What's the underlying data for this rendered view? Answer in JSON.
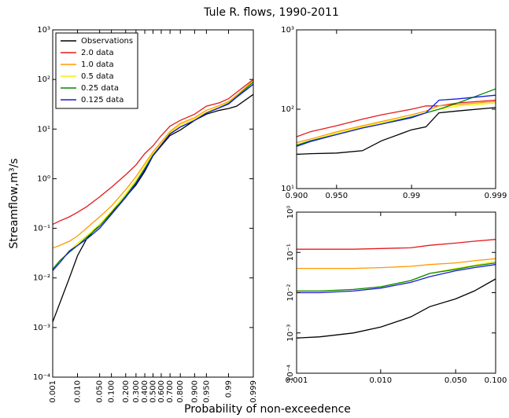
{
  "title": "Tule R. flows, 1990-2011",
  "xlabel": "Probability of non-exceedence",
  "ylabel": "Streamflow,m³/s",
  "chart_data": [
    {
      "type": "line",
      "xscale": "probability",
      "yscale": "log",
      "legend": "upper left",
      "xlim": [
        0.001,
        0.999
      ],
      "ylim": [
        0.0001,
        1000
      ],
      "xticks": [
        0.001,
        {
          "value": 0.01,
          "label": "0.010"
        },
        {
          "value": 0.05,
          "label": "0.050"
        },
        {
          "value": 0.1,
          "label": "0.100"
        },
        {
          "value": 0.2,
          "label": "0.200"
        },
        {
          "value": 0.3,
          "label": "0.300"
        },
        {
          "value": 0.4,
          "label": "0.400"
        },
        {
          "value": 0.5,
          "label": "0.500"
        },
        {
          "value": 0.6,
          "label": "0.600"
        },
        {
          "value": 0.7,
          "label": "0.700"
        },
        {
          "value": 0.8,
          "label": "0.800"
        },
        {
          "value": 0.9,
          "label": "0.900"
        },
        {
          "value": 0.95,
          "label": "0.950"
        },
        0.99,
        0.999
      ],
      "yticks": [
        {
          "value": 0.0001,
          "label": "10⁻⁴"
        },
        {
          "value": 0.001,
          "label": "10⁻³"
        },
        {
          "value": 0.01,
          "label": "10⁻²"
        },
        {
          "value": 0.1,
          "label": "10⁻¹"
        },
        {
          "value": 1,
          "label": "10⁰"
        },
        {
          "value": 10,
          "label": "10¹"
        },
        {
          "value": 100,
          "label": "10²"
        },
        {
          "value": 1000,
          "label": "10³"
        }
      ],
      "x": [
        0.001,
        0.002,
        0.005,
        0.01,
        0.02,
        0.05,
        0.1,
        0.2,
        0.3,
        0.4,
        0.5,
        0.6,
        0.7,
        0.8,
        0.9,
        0.95,
        0.98,
        0.99,
        0.995,
        0.999
      ],
      "series": [
        {
          "name": "Observations",
          "color": "#000000",
          "values": [
            0.0013,
            0.003,
            0.01,
            0.028,
            0.06,
            0.12,
            0.21,
            0.43,
            0.75,
            1.4,
            2.9,
            4.6,
            7.4,
            9.6,
            15,
            20,
            24,
            26,
            29,
            50
          ]
        },
        {
          "name": "2.0 data",
          "color": "#e41a1c",
          "values": [
            0.12,
            0.14,
            0.17,
            0.21,
            0.27,
            0.43,
            0.67,
            1.2,
            1.9,
            3.2,
            4.6,
            7.4,
            11.5,
            15,
            20,
            29,
            34,
            41,
            55,
            100
          ]
        },
        {
          "name": "1.0 data",
          "color": "#ff9900",
          "values": [
            0.04,
            0.045,
            0.055,
            0.07,
            0.1,
            0.17,
            0.28,
            0.6,
            1.1,
            2,
            3.5,
            5.5,
            9,
            13,
            17,
            24,
            30,
            36,
            48,
            95
          ]
        },
        {
          "name": "0.5 data",
          "color": "#f2f200",
          "values": [
            0.014,
            0.022,
            0.035,
            0.05,
            0.07,
            0.12,
            0.22,
            0.5,
            0.95,
            1.8,
            3.2,
            5,
            8.5,
            12,
            16,
            22,
            28,
            34,
            45,
            90
          ]
        },
        {
          "name": "0.25 data",
          "color": "#008800",
          "values": [
            0.015,
            0.022,
            0.033,
            0.045,
            0.065,
            0.11,
            0.2,
            0.45,
            0.85,
            1.6,
            3,
            4.8,
            8,
            11,
            15,
            21,
            27,
            33,
            45,
            88
          ]
        },
        {
          "name": "0.125 data",
          "color": "#1a1adb",
          "values": [
            0.014,
            0.02,
            0.035,
            0.045,
            0.06,
            0.1,
            0.19,
            0.42,
            0.8,
            1.5,
            2.9,
            4.8,
            8,
            11,
            15,
            21,
            27,
            32,
            44,
            80
          ]
        }
      ]
    },
    {
      "type": "line",
      "xscale": "probability",
      "yscale": "log",
      "xlim": [
        0.9,
        0.999
      ],
      "ylim": [
        10,
        1000
      ],
      "xticks": [
        {
          "value": 0.9,
          "label": "0.900"
        },
        {
          "value": 0.95,
          "label": "0.950"
        },
        0.99,
        0.999
      ],
      "yticks": [
        {
          "value": 10,
          "label": "10¹"
        },
        {
          "value": 100,
          "label": "10²"
        },
        {
          "value": 1000,
          "label": "10³"
        }
      ],
      "x": [
        0.9,
        0.92,
        0.95,
        0.97,
        0.98,
        0.99,
        0.993,
        0.995,
        0.997,
        0.999
      ],
      "series": [
        {
          "color": "#000000",
          "values": [
            27,
            27.5,
            28,
            30,
            40,
            55,
            60,
            90,
            95,
            105
          ]
        },
        {
          "color": "#e41a1c",
          "values": [
            45,
            52,
            62,
            75,
            85,
            100,
            110,
            110,
            120,
            130
          ]
        },
        {
          "color": "#ff9900",
          "values": [
            38,
            42,
            52,
            62,
            70,
            85,
            95,
            110,
            115,
            125
          ]
        },
        {
          "color": "#f2f200",
          "values": [
            36,
            40,
            50,
            60,
            68,
            80,
            90,
            100,
            110,
            120
          ]
        },
        {
          "color": "#008800",
          "values": [
            35,
            40,
            48,
            58,
            65,
            80,
            90,
            100,
            120,
            180
          ]
        },
        {
          "color": "#1a1adb",
          "values": [
            34,
            39,
            48,
            58,
            65,
            78,
            90,
            130,
            135,
            150
          ]
        }
      ]
    },
    {
      "type": "line",
      "xscale": "probability",
      "yscale": "log",
      "xlim": [
        0.001,
        0.1
      ],
      "ylim": [
        0.0001,
        1
      ],
      "xticks": [
        0.001,
        {
          "value": 0.01,
          "label": "0.010"
        },
        {
          "value": 0.05,
          "label": "0.050"
        },
        {
          "value": 0.1,
          "label": "0.100"
        }
      ],
      "yticks": [
        {
          "value": 0.0001,
          "label": "10⁻⁴"
        },
        {
          "value": 0.001,
          "label": "10⁻³"
        },
        {
          "value": 0.01,
          "label": "10⁻²"
        },
        {
          "value": 0.1,
          "label": "10⁻¹"
        },
        {
          "value": 1,
          "label": "10⁰"
        }
      ],
      "x": [
        0.001,
        0.002,
        0.005,
        0.01,
        0.02,
        0.03,
        0.05,
        0.07,
        0.1
      ],
      "series": [
        {
          "color": "#000000",
          "values": [
            0.00075,
            0.0008,
            0.001,
            0.0014,
            0.0025,
            0.0045,
            0.007,
            0.011,
            0.022
          ]
        },
        {
          "color": "#e41a1c",
          "values": [
            0.12,
            0.12,
            0.12,
            0.125,
            0.13,
            0.15,
            0.17,
            0.19,
            0.21
          ]
        },
        {
          "color": "#ff9900",
          "values": [
            0.04,
            0.04,
            0.04,
            0.042,
            0.045,
            0.05,
            0.055,
            0.062,
            0.07
          ]
        },
        {
          "color": "#f2f200",
          "values": [
            0.011,
            0.011,
            0.012,
            0.014,
            0.02,
            0.03,
            0.04,
            0.048,
            0.06
          ]
        },
        {
          "color": "#008800",
          "values": [
            0.011,
            0.011,
            0.012,
            0.014,
            0.02,
            0.03,
            0.038,
            0.046,
            0.055
          ]
        },
        {
          "color": "#1a1adb",
          "values": [
            0.01,
            0.01,
            0.011,
            0.013,
            0.018,
            0.025,
            0.035,
            0.042,
            0.05
          ]
        }
      ]
    }
  ]
}
